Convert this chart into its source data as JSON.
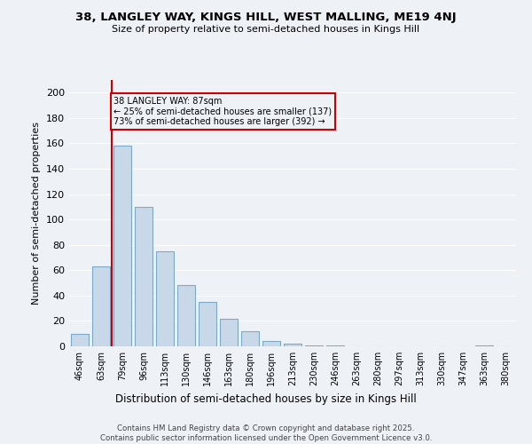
{
  "title1": "38, LANGLEY WAY, KINGS HILL, WEST MALLING, ME19 4NJ",
  "title2": "Size of property relative to semi-detached houses in Kings Hill",
  "xlabel": "Distribution of semi-detached houses by size in Kings Hill",
  "ylabel": "Number of semi-detached properties",
  "categories": [
    "46sqm",
    "63sqm",
    "79sqm",
    "96sqm",
    "113sqm",
    "130sqm",
    "146sqm",
    "163sqm",
    "180sqm",
    "196sqm",
    "213sqm",
    "230sqm",
    "246sqm",
    "263sqm",
    "280sqm",
    "297sqm",
    "313sqm",
    "330sqm",
    "347sqm",
    "363sqm",
    "380sqm"
  ],
  "values": [
    10,
    63,
    158,
    110,
    75,
    48,
    35,
    22,
    12,
    4,
    2,
    1,
    1,
    0,
    0,
    0,
    0,
    0,
    0,
    1,
    0
  ],
  "bar_color": "#c8d8e8",
  "bar_edge_color": "#7aaac8",
  "property_label": "38 LANGLEY WAY: 87sqm",
  "annotation_line1": "← 25% of semi-detached houses are smaller (137)",
  "annotation_line2": "73% of semi-detached houses are larger (392) →",
  "vline_color": "#cc0000",
  "box_color": "#cc0000",
  "background_color": "#eef2f7",
  "grid_color": "#ffffff",
  "ylim": [
    0,
    210
  ],
  "yticks": [
    0,
    20,
    40,
    60,
    80,
    100,
    120,
    140,
    160,
    180,
    200
  ],
  "footer1": "Contains HM Land Registry data © Crown copyright and database right 2025.",
  "footer2": "Contains public sector information licensed under the Open Government Licence v3.0."
}
